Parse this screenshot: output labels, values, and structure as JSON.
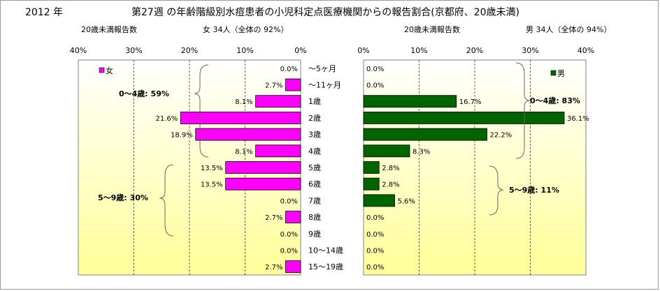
{
  "header": {
    "year": "2012 年",
    "title": "第27週 の年齢階級別水痘患者の小児科定点医療機関からの報告割合(京都府、20歳未満)",
    "left_sub_label": "20歳未満報告数",
    "left_sub_value": "女 34人（全体の 92%）",
    "right_sub_label": "20歳未満報告数",
    "right_sub_value": "男 34人（全体の 94%）"
  },
  "chart_data": {
    "type": "bar",
    "orientation": "horizontal-butterfly",
    "categories": [
      "～5ヶ月",
      "～11ヶ月",
      "1歳",
      "2歳",
      "3歳",
      "4歳",
      "5歳",
      "6歳",
      "7歳",
      "8歳",
      "9歳",
      "10～14歳",
      "15～19歳"
    ],
    "xlim": [
      0,
      40
    ],
    "x_ticks": [
      "0%",
      "10%",
      "20%",
      "30%",
      "40%"
    ],
    "grid": true,
    "series": [
      {
        "name": "女",
        "color": "#ff00ff",
        "values": [
          0.0,
          2.7,
          8.1,
          21.6,
          18.9,
          8.1,
          13.5,
          13.5,
          0.0,
          2.7,
          0.0,
          0.0,
          2.7
        ],
        "labels": [
          "0.0%",
          "2.7%",
          "8.1%",
          "21.6%",
          "18.9%",
          "8.1%",
          "13.5%",
          "13.5%",
          "0.0%",
          "2.7%",
          "0.0%",
          "0.0%",
          "2.7%"
        ],
        "legend_position": "top-left"
      },
      {
        "name": "男",
        "color": "#006400",
        "values": [
          0.0,
          0.0,
          16.7,
          36.1,
          22.2,
          8.3,
          2.8,
          2.8,
          5.6,
          0.0,
          0.0,
          0.0,
          0.0
        ],
        "labels": [
          "0.0%",
          "0.0%",
          "16.7%",
          "36.1%",
          "22.2%",
          "8.3%",
          "2.8%",
          "2.8%",
          "5.6%",
          "0.0%",
          "0.0%",
          "0.0%",
          "0.0%"
        ],
        "legend_position": "top-right"
      }
    ],
    "annotations": {
      "female_0_4": "0～4歳: 59%",
      "female_5_9": "5～9歳: 30%",
      "male_0_4": "0～4歳: 83%",
      "male_5_9": "5～9歳: 11%"
    },
    "colors": {
      "plot_gradient_top": "#ffffff",
      "plot_gradient_bottom": "#ffff99"
    }
  }
}
